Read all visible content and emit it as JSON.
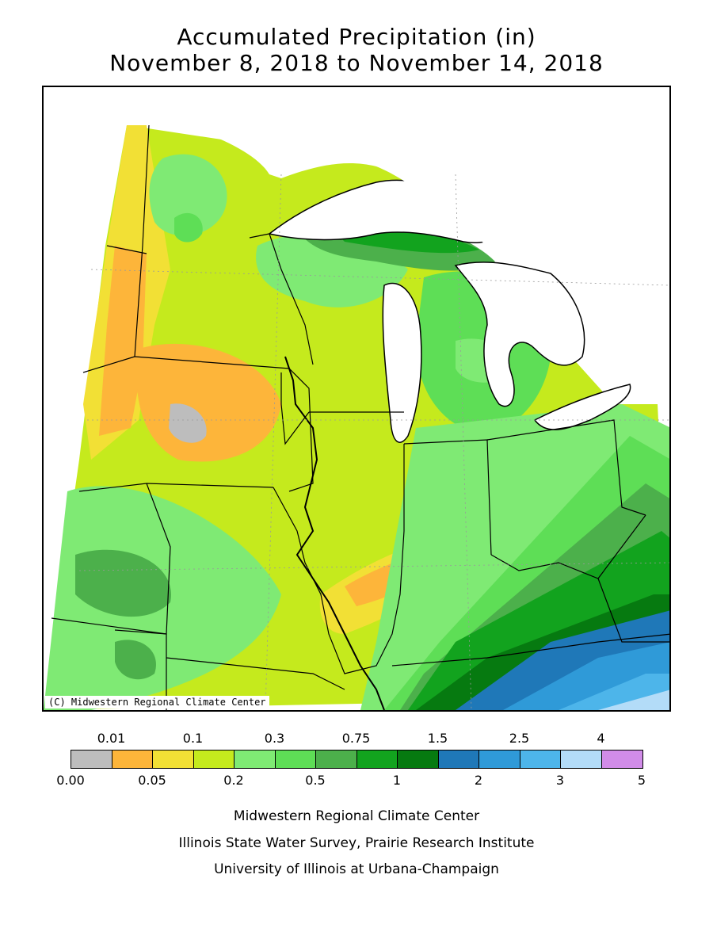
{
  "title": {
    "line1": "Accumulated Precipitation (in)",
    "line2": "November 8, 2018 to November 14, 2018"
  },
  "map": {
    "copyright": "(C) Midwestern Regional Climate Center"
  },
  "legend": {
    "colors": [
      "#bdbdbd",
      "#fdb53a",
      "#f2e035",
      "#c5ea1d",
      "#7fea74",
      "#5ede56",
      "#4cb04b",
      "#12a31e",
      "#067a10",
      "#1f78b8",
      "#2f9ad8",
      "#4db5ea",
      "#b3dcf8",
      "#d18ce8"
    ],
    "top_labels": [
      "0.01",
      "0.1",
      "0.3",
      "0.75",
      "1.5",
      "2.5",
      "4"
    ],
    "bottom_labels": [
      "0.00",
      "0.05",
      "0.2",
      "0.5",
      "1",
      "2",
      "3",
      "5"
    ]
  },
  "credits": [
    "Midwestern Regional Climate Center",
    "Illinois State Water Survey, Prairie Research Institute",
    "University of Illinois at Urbana-Champaign"
  ]
}
